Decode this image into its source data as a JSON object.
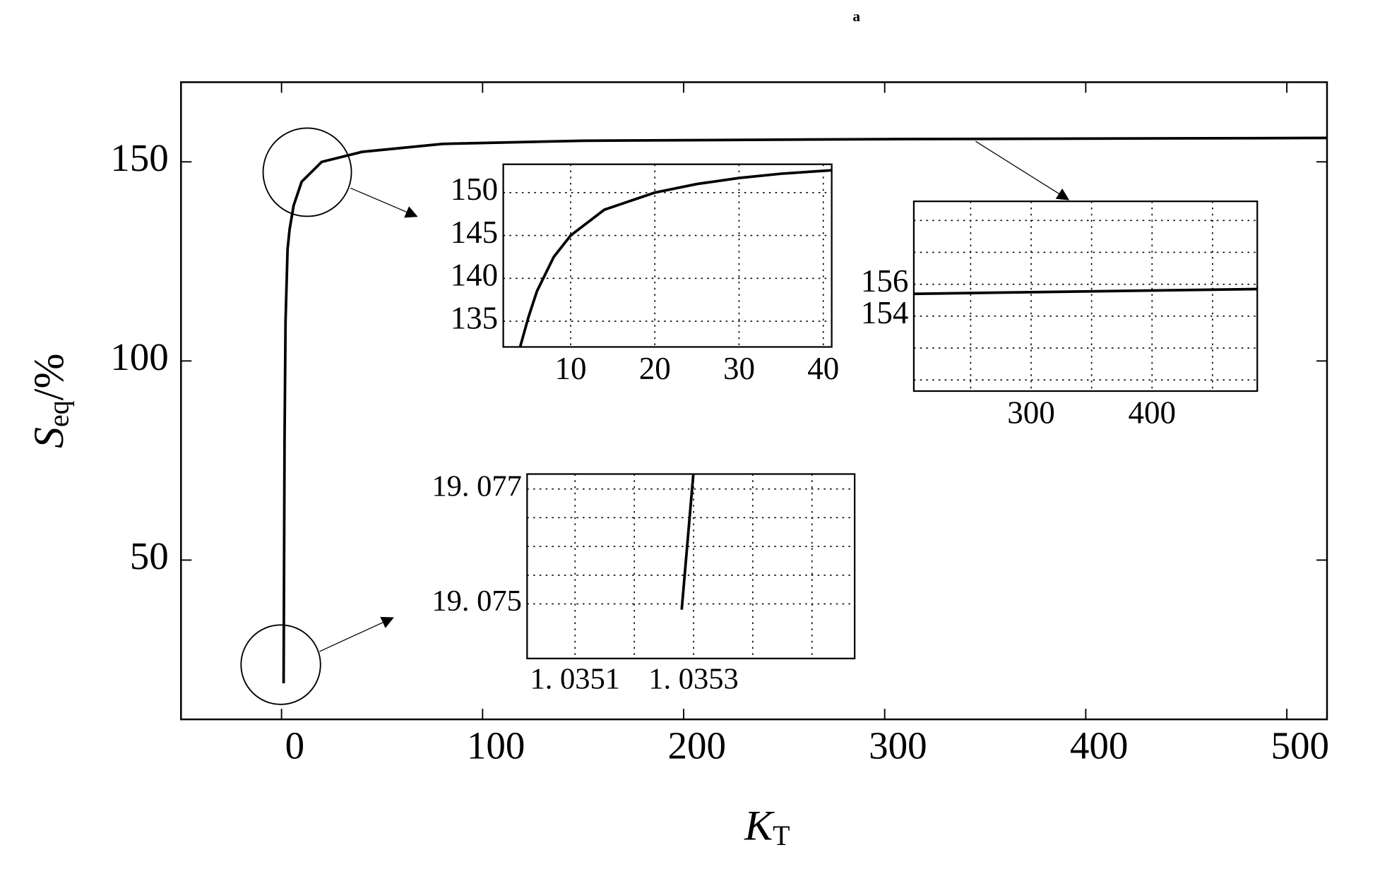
{
  "chart_data": [
    {
      "type": "line",
      "title": "a",
      "xlabel": {
        "main": "K",
        "sub": "T"
      },
      "ylabel": {
        "main": "S",
        "sub": "eq",
        "unit": "/%"
      },
      "color": "#000000",
      "grid": false,
      "x": [
        1.0353,
        1.5,
        2,
        3,
        4,
        6,
        10,
        20,
        40,
        80,
        150,
        300,
        520
      ],
      "values": [
        19.08,
        80,
        110,
        128,
        133,
        139,
        145,
        150,
        152.5,
        154.5,
        155.3,
        155.7,
        156
      ],
      "xlim": [
        -50,
        520
      ],
      "ylim": [
        10,
        170
      ],
      "xticks": [
        0,
        100,
        200,
        300,
        400,
        500
      ],
      "yticks": [
        50,
        100,
        150
      ]
    },
    {
      "type": "line",
      "color": "#000000",
      "grid": true,
      "x": [
        4,
        5,
        6,
        8,
        10,
        14,
        20,
        25,
        30,
        35,
        41
      ],
      "values": [
        132,
        135.5,
        138.5,
        142.5,
        145,
        148,
        150,
        151,
        151.7,
        152.2,
        152.6
      ],
      "xlim": [
        2,
        41
      ],
      "ylim": [
        132,
        153.3
      ],
      "xticks": [
        10,
        20,
        30,
        40
      ],
      "yticks": [
        135,
        140,
        145,
        150
      ]
    },
    {
      "type": "line",
      "color": "#000000",
      "grid": true,
      "x": [
        203,
        487
      ],
      "values": [
        155.4,
        155.7
      ],
      "xlim": [
        203,
        487
      ],
      "ylim": [
        149.3,
        161.2
      ],
      "xticks": [
        300,
        400
      ],
      "yticks": [
        154,
        156
      ],
      "xgrid": [
        250,
        350,
        450
      ],
      "ygrid": [
        150,
        152,
        158,
        160
      ]
    },
    {
      "type": "line",
      "color": "#000000",
      "grid": true,
      "x": [
        1.03528,
        1.0353
      ],
      "values": [
        19.0749,
        19.0773
      ],
      "xlim": [
        1.035019,
        1.035572
      ],
      "ylim": [
        19.07405,
        19.07726
      ],
      "xticks": [
        {
          "value": 1.0351,
          "label": "1. 0351"
        },
        {
          "value": 1.0353,
          "label": "1. 0353"
        }
      ],
      "yticks": [
        {
          "value": 19.075,
          "label": "19. 075"
        },
        {
          "value": 19.077,
          "label": "19. 077"
        }
      ],
      "xgrid": [
        1.0352,
        1.0354,
        1.0355
      ],
      "ygrid": [
        19.0755,
        19.076,
        19.0765
      ]
    }
  ]
}
